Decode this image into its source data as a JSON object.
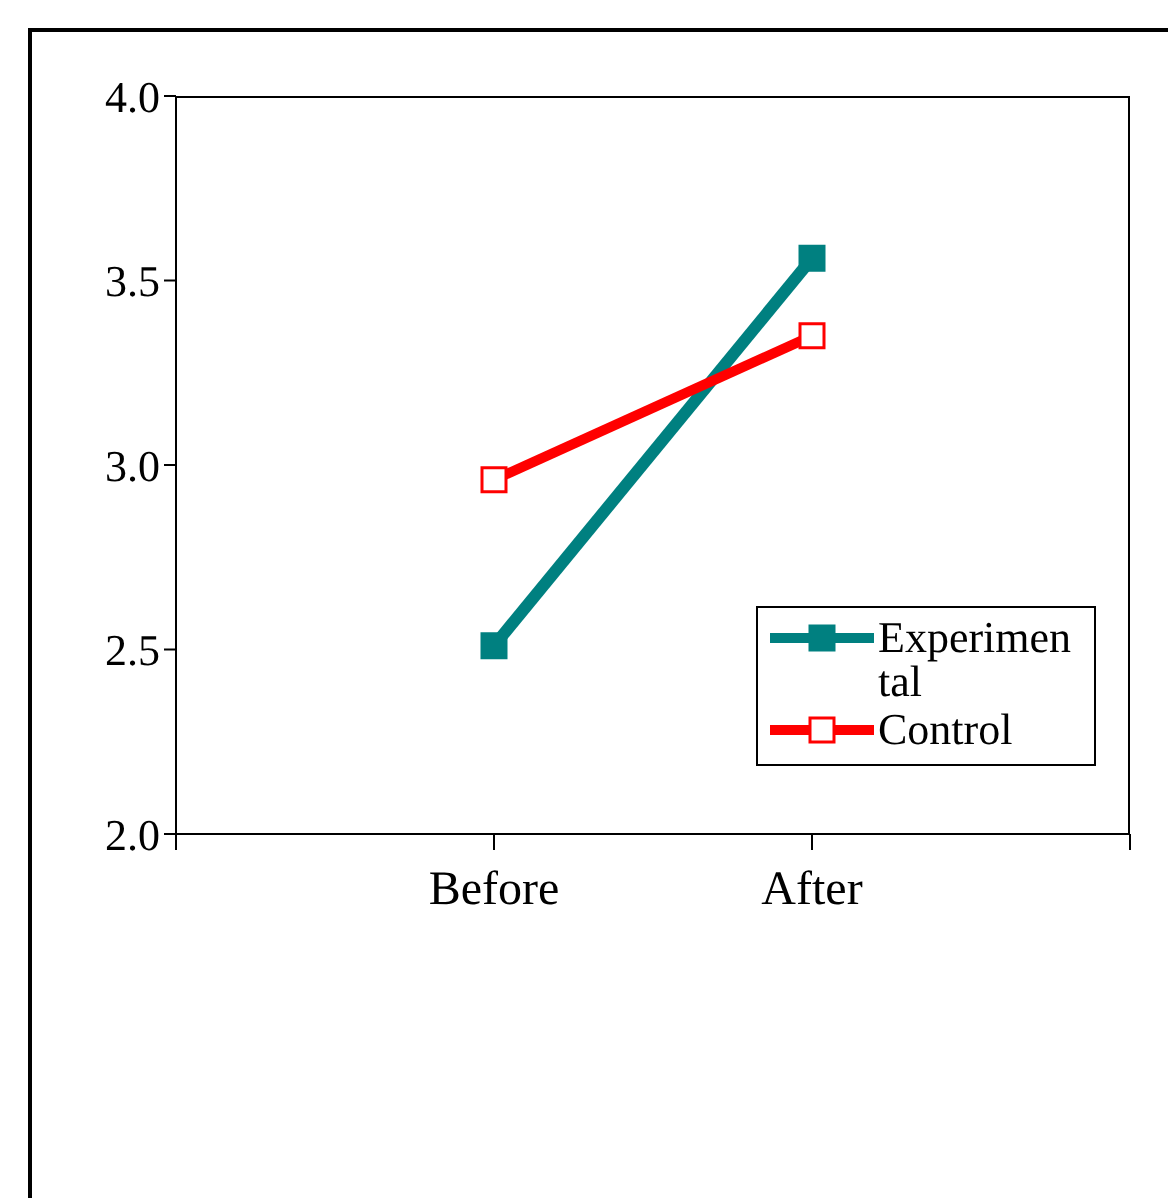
{
  "chart_data": {
    "type": "line",
    "categories": [
      null,
      "Before",
      "After",
      null
    ],
    "series": [
      {
        "name": "Experimental",
        "color": "#008080",
        "values": [
          null,
          2.51,
          3.56,
          null
        ]
      },
      {
        "name": "Control",
        "color": "#ff0000",
        "values": [
          null,
          2.96,
          3.35,
          null
        ]
      }
    ],
    "ylim": [
      2,
      4
    ],
    "yticks": [
      {
        "value": 2,
        "label": "2.0"
      },
      {
        "value": 2.5,
        "label": "2.5"
      },
      {
        "value": 3,
        "label": "3.0"
      },
      {
        "value": 3.5,
        "label": "3.5"
      },
      {
        "value": 4,
        "label": "4.0"
      }
    ],
    "grid": false,
    "legend": "bottom right",
    "marker": "square",
    "line_style": "solid"
  }
}
